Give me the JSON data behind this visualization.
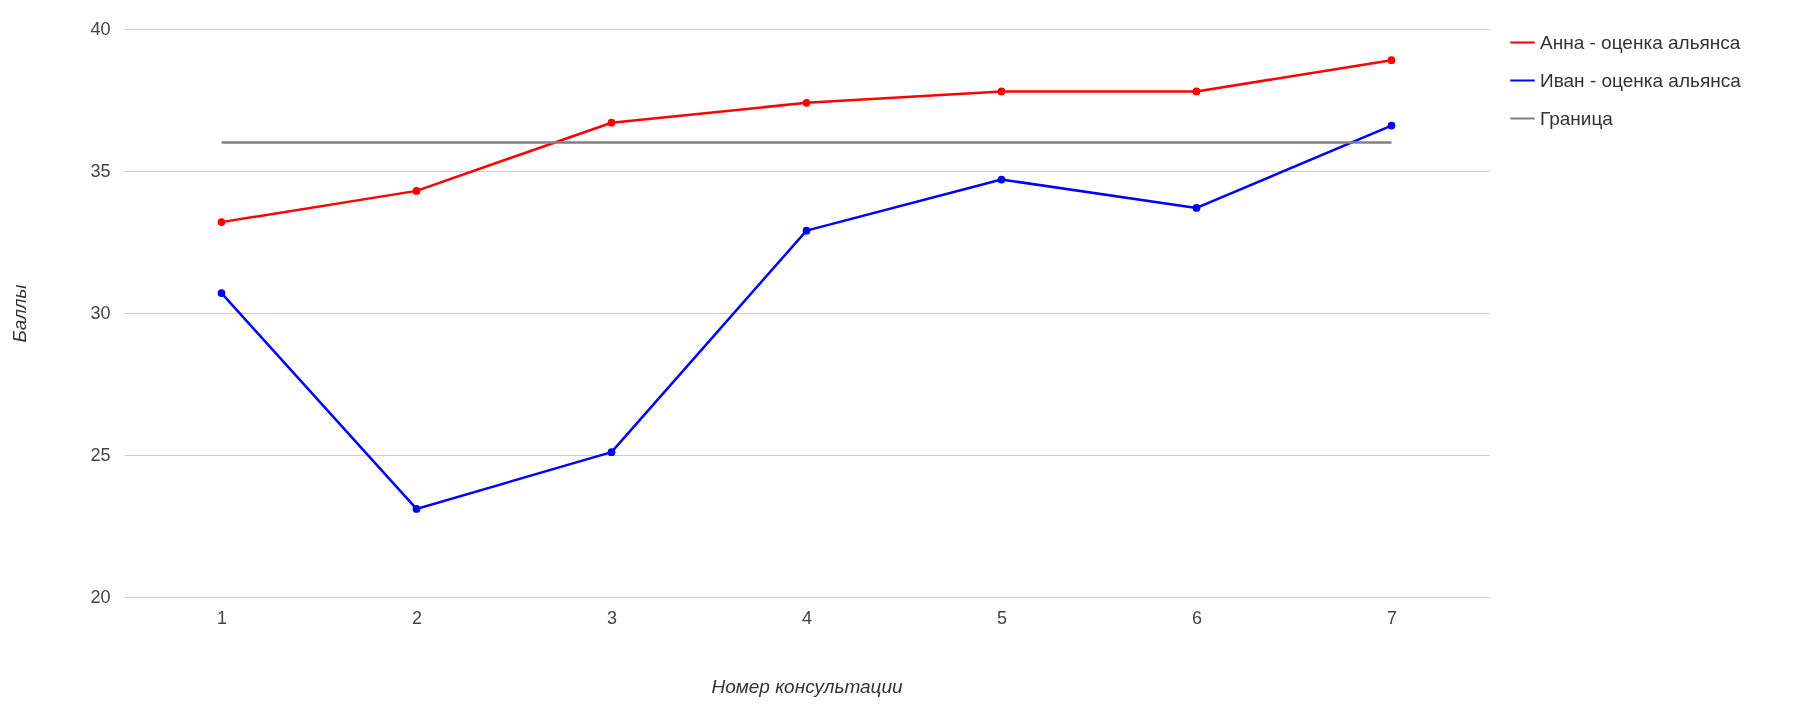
{
  "chart_data": {
    "type": "line",
    "xlabel": "Номер консультации",
    "ylabel": "Баллы",
    "categories": [
      "1",
      "2",
      "3",
      "4",
      "5",
      "6",
      "7"
    ],
    "series": [
      {
        "name": "Анна - оценка альянса",
        "color": "#ff0000",
        "values": [
          33.2,
          34.3,
          36.7,
          37.4,
          37.8,
          37.8,
          38.9
        ]
      },
      {
        "name": "Иван - оценка альянса",
        "color": "#0000ff",
        "values": [
          30.7,
          23.1,
          25.1,
          32.9,
          34.7,
          33.7,
          36.6
        ]
      },
      {
        "name": "Граница",
        "color": "#808080",
        "marker": "none",
        "values": [
          36,
          36,
          36,
          36,
          36,
          36,
          36
        ]
      }
    ],
    "ylim": [
      20,
      40
    ],
    "yticks": [
      20,
      25,
      30,
      35,
      40
    ],
    "grid": "y",
    "legend": "top right",
    "marker": "circle",
    "line_style": "solid"
  }
}
